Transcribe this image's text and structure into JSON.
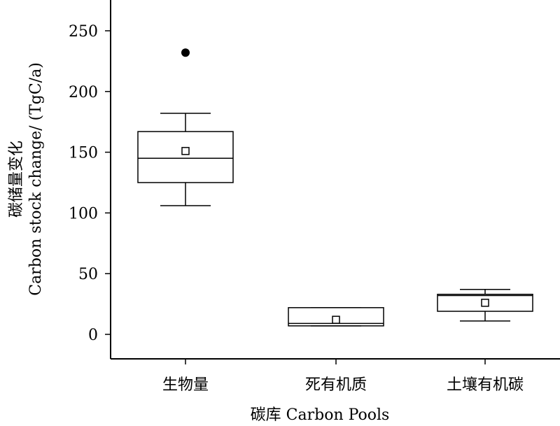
{
  "chart_data": {
    "type": "box",
    "xlabel": "碳库 Carbon Pools",
    "ylabel_line1": "碳储量变化",
    "ylabel_line2": "Carbon stock change/ (TgC/a)",
    "ylim": [
      -20,
      275
    ],
    "yticks": [
      0,
      50,
      100,
      150,
      200,
      250
    ],
    "categories": [
      "生物量",
      "死有机质",
      "土壤有机碳"
    ],
    "boxes": [
      {
        "category": "生物量",
        "whisker_low": 106,
        "q1": 125,
        "median": 145,
        "q3": 167,
        "whisker_high": 182,
        "mean": 151,
        "outliers": [
          232
        ]
      },
      {
        "category": "死有机质",
        "whisker_low": 7,
        "q1": 7,
        "median": 9,
        "q3": 22,
        "whisker_high": 22,
        "mean": 12,
        "outliers": []
      },
      {
        "category": "土壤有机碳",
        "whisker_low": 11,
        "q1": 19,
        "median": 32,
        "q3": 33,
        "whisker_high": 37,
        "mean": 26,
        "outliers": []
      }
    ]
  }
}
